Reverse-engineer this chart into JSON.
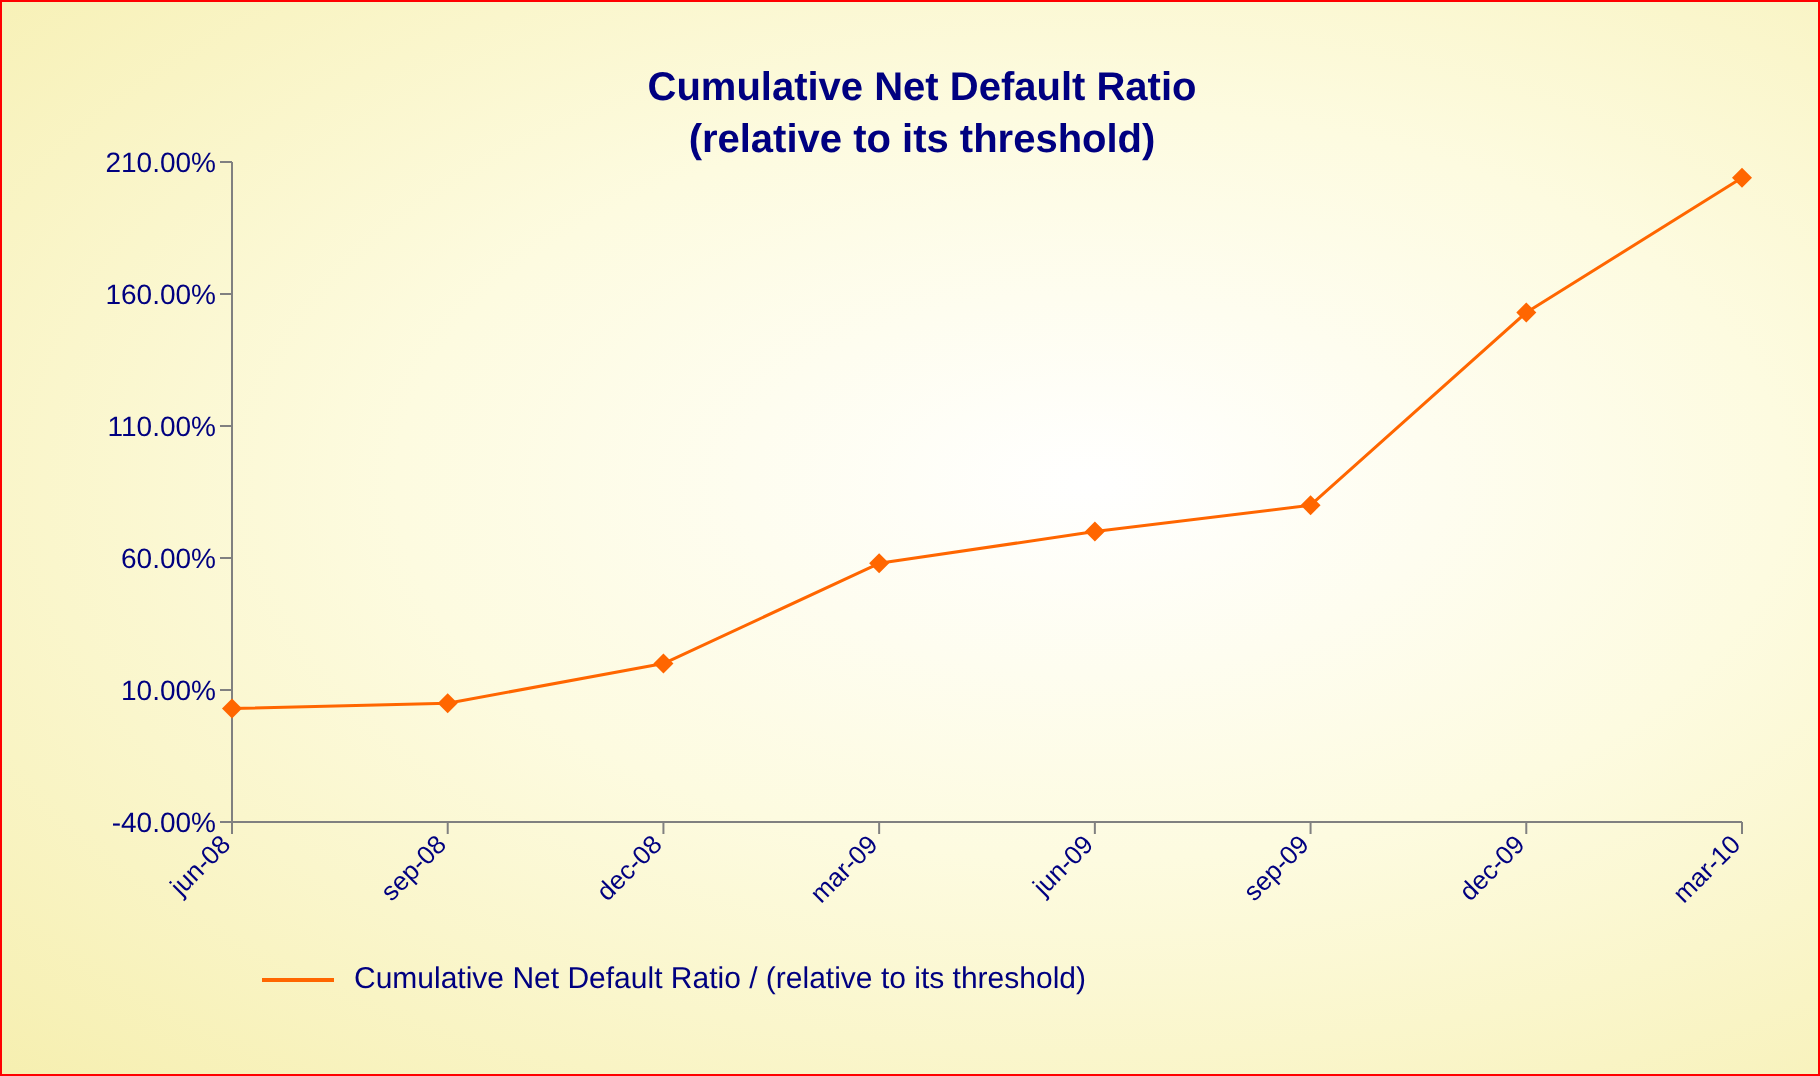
{
  "chart_data": {
    "type": "line",
    "title": "Cumulative Net Default Ratio\n(relative to its threshold)",
    "categories": [
      "jun-08",
      "sep-08",
      "dec-08",
      "mar-09",
      "jun-09",
      "sep-09",
      "dec-09",
      "mar-10"
    ],
    "series": [
      {
        "name": "Cumulative Net Default Ratio / (relative to its threshold)",
        "color": "#ff6600",
        "values": [
          3,
          5,
          20,
          58,
          70,
          80,
          153,
          204
        ]
      }
    ],
    "ylim": [
      -40,
      210
    ],
    "yticks": [
      {
        "value": -40,
        "label": "-40.00%"
      },
      {
        "value": 10,
        "label": "10.00%"
      },
      {
        "value": 60,
        "label": "60.00%"
      },
      {
        "value": 110,
        "label": "110.00%"
      },
      {
        "value": 160,
        "label": "160.00%"
      },
      {
        "value": 210,
        "label": "210.00%"
      }
    ],
    "grid": false,
    "legend": "bottom",
    "marker": "diamond",
    "line_style": "solid"
  }
}
